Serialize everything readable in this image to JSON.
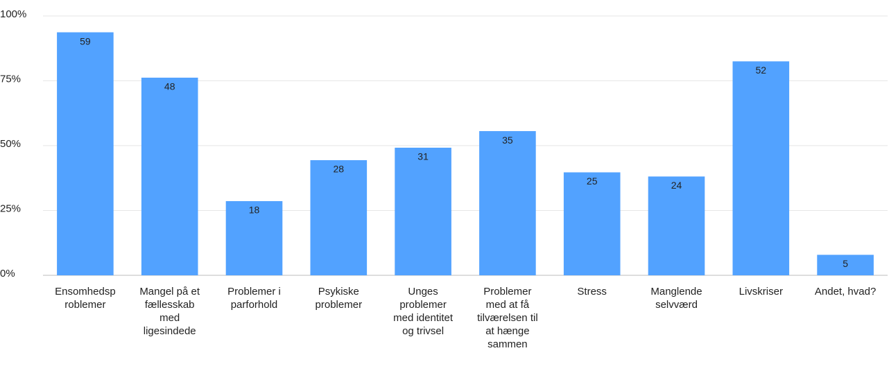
{
  "chart_data": {
    "type": "bar",
    "categories": [
      "Ensomhedsproblemer",
      "Mangel på et fællesskab med ligesindede",
      "Problemer i parforhold",
      "Psykiske problemer",
      "Unges problemer med identitet og trivsel",
      "Problemer med at få tilværelsen til at hænge sammen",
      "Stress",
      "Manglende selvværd",
      "Livskriser",
      "Andet, hvad?"
    ],
    "values": [
      93.7,
      76.2,
      28.6,
      44.4,
      49.2,
      55.6,
      39.7,
      38.1,
      82.5,
      7.9
    ],
    "counts": [
      59,
      48,
      18,
      28,
      31,
      35,
      25,
      24,
      52,
      5
    ],
    "color": "#52a2ff",
    "ylim": [
      0,
      100
    ],
    "yticks": [
      {
        "value": 0,
        "label": "0%"
      },
      {
        "value": 25,
        "label": "25%"
      },
      {
        "value": 50,
        "label": "50%"
      },
      {
        "value": 75,
        "label": "75%"
      },
      {
        "value": 100,
        "label": "100%"
      }
    ],
    "grid": true
  }
}
